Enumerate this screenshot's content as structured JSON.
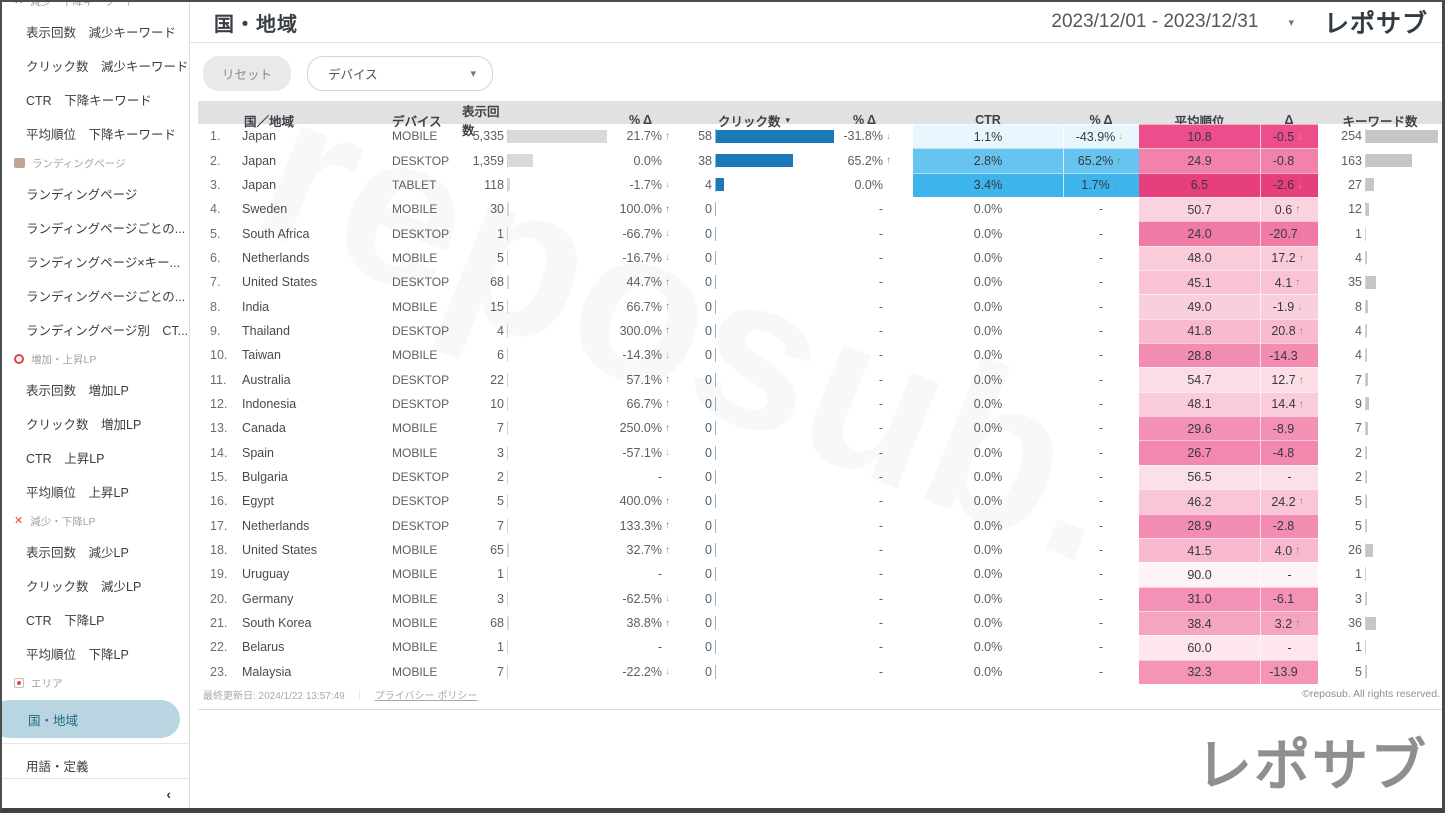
{
  "header": {
    "title": "国・地域",
    "date_range": "2023/12/01 - 2023/12/31",
    "date_caret_icon": "▾",
    "logo": "レポサブ"
  },
  "toolbar": {
    "reset_label": "リセット",
    "device_label": "デバイス",
    "device_caret_icon": "▾"
  },
  "sidebar": {
    "collapse_label": "‹",
    "entries": [
      {
        "type": "section",
        "icon": "x-icon",
        "label": "減少・下降キーワード"
      },
      {
        "type": "item",
        "label": "表示回数　減少キーワード"
      },
      {
        "type": "item",
        "label": "クリック数　減少キーワード"
      },
      {
        "type": "item",
        "label": "CTR　下降キーワード"
      },
      {
        "type": "item",
        "label": "平均順位　下降キーワード"
      },
      {
        "type": "section",
        "icon": "landing-icon",
        "label": "ランディングページ"
      },
      {
        "type": "item",
        "label": "ランディングページ"
      },
      {
        "type": "item",
        "label": "ランディングページごとの..."
      },
      {
        "type": "item",
        "label": "ランディングページ×キー..."
      },
      {
        "type": "item",
        "label": "ランディングページごとの..."
      },
      {
        "type": "item",
        "label": "ランディングページ別　CT..."
      },
      {
        "type": "section",
        "icon": "circle-icon",
        "label": "増加・上昇LP"
      },
      {
        "type": "item",
        "label": "表示回数　増加LP"
      },
      {
        "type": "item",
        "label": "クリック数　増加LP"
      },
      {
        "type": "item",
        "label": "CTR　上昇LP"
      },
      {
        "type": "item",
        "label": "平均順位　上昇LP"
      },
      {
        "type": "section",
        "icon": "x-icon",
        "label": "減少・下降LP"
      },
      {
        "type": "item",
        "label": "表示回数　減少LP"
      },
      {
        "type": "item",
        "label": "クリック数　減少LP"
      },
      {
        "type": "item",
        "label": "CTR　下降LP"
      },
      {
        "type": "item",
        "label": "平均順位　下降LP"
      },
      {
        "type": "section",
        "icon": "area-icon",
        "label": "エリア"
      },
      {
        "type": "item",
        "label": "国・地域",
        "active": true
      },
      {
        "type": "divider"
      },
      {
        "type": "item",
        "label": "用語・定義"
      }
    ]
  },
  "table": {
    "columns": [
      "国／地域",
      "デバイス",
      "表示回数",
      "% Δ",
      "クリック数",
      "% Δ",
      "CTR",
      "% Δ",
      "平均順位",
      "Δ",
      "キーワード数"
    ],
    "bar_max": {
      "impressions": 5335,
      "clicks": 58,
      "keywords": 254
    },
    "bar_colors": {
      "impressions": "#d9d9d9",
      "clicks": "#1b79ba",
      "keywords": "#c6c6c6"
    },
    "rows": [
      {
        "rank": "1.",
        "country": "Japan",
        "device": "MOBILE",
        "imp": "5,335",
        "imp_v": 5335,
        "impd": "21.7%",
        "impd_dir": "up",
        "clk": "58",
        "clk_v": 58,
        "clkd": "-31.8%",
        "clkd_dir": "down",
        "ctr": "1.1%",
        "ctr_bg": "#e9f6fd",
        "ctrd": "-43.9%",
        "ctrd_dir": "down",
        "pos": "10.8",
        "pos_bg": "#eb4e8a",
        "posd": "-0.5",
        "posd_dir": "down",
        "kw": "254",
        "kw_v": 254
      },
      {
        "rank": "2.",
        "country": "Japan",
        "device": "DESKTOP",
        "imp": "1,359",
        "imp_v": 1359,
        "impd": "0.0%",
        "impd_dir": "",
        "clk": "38",
        "clk_v": 38,
        "clkd": "65.2%",
        "clkd_dir": "up",
        "ctr": "2.8%",
        "ctr_bg": "#67c3ef",
        "ctrd": "65.2%",
        "ctrd_dir": "up",
        "pos": "24.9",
        "pos_bg": "#f182ac",
        "posd": "-0.8",
        "posd_dir": "down",
        "kw": "163",
        "kw_v": 163
      },
      {
        "rank": "3.",
        "country": "Japan",
        "device": "TABLET",
        "imp": "118",
        "imp_v": 118,
        "impd": "-1.7%",
        "impd_dir": "down",
        "clk": "4",
        "clk_v": 4,
        "clkd": "0.0%",
        "clkd_dir": "",
        "ctr": "3.4%",
        "ctr_bg": "#3db4ec",
        "ctrd": "1.7%",
        "ctrd_dir": "up",
        "pos": "6.5",
        "pos_bg": "#e73e7e",
        "posd": "-2.6",
        "posd_dir": "down",
        "kw": "27",
        "kw_v": 27
      },
      {
        "rank": "4.",
        "country": "Sweden",
        "device": "MOBILE",
        "imp": "30",
        "imp_v": 30,
        "impd": "100.0%",
        "impd_dir": "up",
        "clk": "0",
        "clk_v": 0,
        "clkd": "-",
        "clkd_dir": "",
        "ctr": "0.0%",
        "ctr_bg": "",
        "ctrd": "-",
        "ctrd_dir": "",
        "pos": "50.7",
        "pos_bg": "#fbd3e0",
        "posd": "0.6",
        "posd_dir": "up",
        "kw": "12",
        "kw_v": 12
      },
      {
        "rank": "5.",
        "country": "South Africa",
        "device": "DESKTOP",
        "imp": "1",
        "imp_v": 1,
        "impd": "-66.7%",
        "impd_dir": "down",
        "clk": "0",
        "clk_v": 0,
        "clkd": "-",
        "clkd_dir": "",
        "ctr": "0.0%",
        "ctr_bg": "",
        "ctrd": "-",
        "ctrd_dir": "",
        "pos": "24.0",
        "pos_bg": "#f07aa7",
        "posd": "-20.7",
        "posd_dir": "down",
        "kw": "1",
        "kw_v": 1
      },
      {
        "rank": "6.",
        "country": "Netherlands",
        "device": "MOBILE",
        "imp": "5",
        "imp_v": 5,
        "impd": "-16.7%",
        "impd_dir": "down",
        "clk": "0",
        "clk_v": 0,
        "clkd": "-",
        "clkd_dir": "",
        "ctr": "0.0%",
        "ctr_bg": "",
        "ctrd": "-",
        "ctrd_dir": "",
        "pos": "48.0",
        "pos_bg": "#facbda",
        "posd": "17.2",
        "posd_dir": "up",
        "kw": "4",
        "kw_v": 4
      },
      {
        "rank": "7.",
        "country": "United States",
        "device": "DESKTOP",
        "imp": "68",
        "imp_v": 68,
        "impd": "44.7%",
        "impd_dir": "up",
        "clk": "0",
        "clk_v": 0,
        "clkd": "-",
        "clkd_dir": "",
        "ctr": "0.0%",
        "ctr_bg": "",
        "ctrd": "-",
        "ctrd_dir": "",
        "pos": "45.1",
        "pos_bg": "#f9c3d5",
        "posd": "4.1",
        "posd_dir": "up",
        "kw": "35",
        "kw_v": 35
      },
      {
        "rank": "8.",
        "country": "India",
        "device": "MOBILE",
        "imp": "15",
        "imp_v": 15,
        "impd": "66.7%",
        "impd_dir": "up",
        "clk": "0",
        "clk_v": 0,
        "clkd": "-",
        "clkd_dir": "",
        "ctr": "0.0%",
        "ctr_bg": "",
        "ctrd": "-",
        "ctrd_dir": "",
        "pos": "49.0",
        "pos_bg": "#facfdd",
        "posd": "-1.9",
        "posd_dir": "down",
        "kw": "8",
        "kw_v": 8
      },
      {
        "rank": "9.",
        "country": "Thailand",
        "device": "DESKTOP",
        "imp": "4",
        "imp_v": 4,
        "impd": "300.0%",
        "impd_dir": "up",
        "clk": "0",
        "clk_v": 0,
        "clkd": "-",
        "clkd_dir": "",
        "ctr": "0.0%",
        "ctr_bg": "",
        "ctrd": "-",
        "ctrd_dir": "",
        "pos": "41.8",
        "pos_bg": "#f8bace",
        "posd": "20.8",
        "posd_dir": "up",
        "kw": "4",
        "kw_v": 4
      },
      {
        "rank": "10.",
        "country": "Taiwan",
        "device": "MOBILE",
        "imp": "6",
        "imp_v": 6,
        "impd": "-14.3%",
        "impd_dir": "down",
        "clk": "0",
        "clk_v": 0,
        "clkd": "-",
        "clkd_dir": "",
        "ctr": "0.0%",
        "ctr_bg": "",
        "ctrd": "-",
        "ctrd_dir": "",
        "pos": "28.8",
        "pos_bg": "#f28cb3",
        "posd": "-14.3",
        "posd_dir": "down",
        "kw": "4",
        "kw_v": 4
      },
      {
        "rank": "11.",
        "country": "Australia",
        "device": "DESKTOP",
        "imp": "22",
        "imp_v": 22,
        "impd": "57.1%",
        "impd_dir": "up",
        "clk": "0",
        "clk_v": 0,
        "clkd": "-",
        "clkd_dir": "",
        "ctr": "0.0%",
        "ctr_bg": "",
        "ctrd": "-",
        "ctrd_dir": "",
        "pos": "54.7",
        "pos_bg": "#fcdde6",
        "posd": "12.7",
        "posd_dir": "up",
        "kw": "7",
        "kw_v": 7
      },
      {
        "rank": "12.",
        "country": "Indonesia",
        "device": "DESKTOP",
        "imp": "10",
        "imp_v": 10,
        "impd": "66.7%",
        "impd_dir": "up",
        "clk": "0",
        "clk_v": 0,
        "clkd": "-",
        "clkd_dir": "",
        "ctr": "0.0%",
        "ctr_bg": "",
        "ctrd": "-",
        "ctrd_dir": "",
        "pos": "48.1",
        "pos_bg": "#facbda",
        "posd": "14.4",
        "posd_dir": "up",
        "kw": "9",
        "kw_v": 9
      },
      {
        "rank": "13.",
        "country": "Canada",
        "device": "MOBILE",
        "imp": "7",
        "imp_v": 7,
        "impd": "250.0%",
        "impd_dir": "up",
        "clk": "0",
        "clk_v": 0,
        "clkd": "-",
        "clkd_dir": "",
        "ctr": "0.0%",
        "ctr_bg": "",
        "ctrd": "-",
        "ctrd_dir": "",
        "pos": "29.6",
        "pos_bg": "#f390b5",
        "posd": "-8.9",
        "posd_dir": "down",
        "kw": "7",
        "kw_v": 7
      },
      {
        "rank": "14.",
        "country": "Spain",
        "device": "MOBILE",
        "imp": "3",
        "imp_v": 3,
        "impd": "-57.1%",
        "impd_dir": "down",
        "clk": "0",
        "clk_v": 0,
        "clkd": "-",
        "clkd_dir": "",
        "ctr": "0.0%",
        "ctr_bg": "",
        "ctrd": "-",
        "ctrd_dir": "",
        "pos": "26.7",
        "pos_bg": "#f287b0",
        "posd": "-4.8",
        "posd_dir": "down",
        "kw": "2",
        "kw_v": 2
      },
      {
        "rank": "15.",
        "country": "Bulgaria",
        "device": "DESKTOP",
        "imp": "2",
        "imp_v": 2,
        "impd": "-",
        "impd_dir": "",
        "clk": "0",
        "clk_v": 0,
        "clkd": "-",
        "clkd_dir": "",
        "ctr": "0.0%",
        "ctr_bg": "",
        "ctrd": "-",
        "ctrd_dir": "",
        "pos": "56.5",
        "pos_bg": "#fce0e9",
        "posd": "-",
        "posd_dir": "",
        "kw": "2",
        "kw_v": 2
      },
      {
        "rank": "16.",
        "country": "Egypt",
        "device": "DESKTOP",
        "imp": "5",
        "imp_v": 5,
        "impd": "400.0%",
        "impd_dir": "up",
        "clk": "0",
        "clk_v": 0,
        "clkd": "-",
        "clkd_dir": "",
        "ctr": "0.0%",
        "ctr_bg": "",
        "ctrd": "-",
        "ctrd_dir": "",
        "pos": "46.2",
        "pos_bg": "#f9c6d7",
        "posd": "24.2",
        "posd_dir": "up",
        "kw": "5",
        "kw_v": 5
      },
      {
        "rank": "17.",
        "country": "Netherlands",
        "device": "DESKTOP",
        "imp": "7",
        "imp_v": 7,
        "impd": "133.3%",
        "impd_dir": "up",
        "clk": "0",
        "clk_v": 0,
        "clkd": "-",
        "clkd_dir": "",
        "ctr": "0.0%",
        "ctr_bg": "",
        "ctrd": "-",
        "ctrd_dir": "",
        "pos": "28.9",
        "pos_bg": "#f28cb3",
        "posd": "-2.8",
        "posd_dir": "down",
        "kw": "5",
        "kw_v": 5
      },
      {
        "rank": "18.",
        "country": "United States",
        "device": "MOBILE",
        "imp": "65",
        "imp_v": 65,
        "impd": "32.7%",
        "impd_dir": "up",
        "clk": "0",
        "clk_v": 0,
        "clkd": "-",
        "clkd_dir": "",
        "ctr": "0.0%",
        "ctr_bg": "",
        "ctrd": "-",
        "ctrd_dir": "",
        "pos": "41.5",
        "pos_bg": "#f8b8cd",
        "posd": "4.0",
        "posd_dir": "up",
        "kw": "26",
        "kw_v": 26
      },
      {
        "rank": "19.",
        "country": "Uruguay",
        "device": "MOBILE",
        "imp": "1",
        "imp_v": 1,
        "impd": "-",
        "impd_dir": "",
        "clk": "0",
        "clk_v": 0,
        "clkd": "-",
        "clkd_dir": "",
        "ctr": "0.0%",
        "ctr_bg": "",
        "ctrd": "-",
        "ctrd_dir": "",
        "pos": "90.0",
        "pos_bg": "#fef3f7",
        "posd": "-",
        "posd_dir": "",
        "kw": "1",
        "kw_v": 1
      },
      {
        "rank": "20.",
        "country": "Germany",
        "device": "MOBILE",
        "imp": "3",
        "imp_v": 3,
        "impd": "-62.5%",
        "impd_dir": "down",
        "clk": "0",
        "clk_v": 0,
        "clkd": "-",
        "clkd_dir": "",
        "ctr": "0.0%",
        "ctr_bg": "",
        "ctrd": "-",
        "ctrd_dir": "",
        "pos": "31.0",
        "pos_bg": "#f392b6",
        "posd": "-6.1",
        "posd_dir": "down",
        "kw": "3",
        "kw_v": 3
      },
      {
        "rank": "21.",
        "country": "South Korea",
        "device": "MOBILE",
        "imp": "68",
        "imp_v": 68,
        "impd": "38.8%",
        "impd_dir": "up",
        "clk": "0",
        "clk_v": 0,
        "clkd": "-",
        "clkd_dir": "",
        "ctr": "0.0%",
        "ctr_bg": "",
        "ctrd": "-",
        "ctrd_dir": "",
        "pos": "38.4",
        "pos_bg": "#f6a5c1",
        "posd": "3.2",
        "posd_dir": "up",
        "kw": "36",
        "kw_v": 36
      },
      {
        "rank": "22.",
        "country": "Belarus",
        "device": "MOBILE",
        "imp": "1",
        "imp_v": 1,
        "impd": "-",
        "impd_dir": "",
        "clk": "0",
        "clk_v": 0,
        "clkd": "-",
        "clkd_dir": "",
        "ctr": "0.0%",
        "ctr_bg": "",
        "ctrd": "-",
        "ctrd_dir": "",
        "pos": "60.0",
        "pos_bg": "#fde6ed",
        "posd": "-",
        "posd_dir": "",
        "kw": "1",
        "kw_v": 1
      },
      {
        "rank": "23.",
        "country": "Malaysia",
        "device": "MOBILE",
        "imp": "7",
        "imp_v": 7,
        "impd": "-22.2%",
        "impd_dir": "down",
        "clk": "0",
        "clk_v": 0,
        "clkd": "-",
        "clkd_dir": "",
        "ctr": "0.0%",
        "ctr_bg": "",
        "ctrd": "-",
        "ctrd_dir": "",
        "pos": "32.3",
        "pos_bg": "#f495b8",
        "posd": "-13.9",
        "posd_dir": "down",
        "kw": "5",
        "kw_v": 5
      }
    ]
  },
  "footer": {
    "last_updated": "最終更新日: 2024/1/22 13:57:49",
    "separator": "｜",
    "privacy": "プライバシー ポリシー",
    "copyright": "©reposub. All rights reserved.",
    "big_logo": "レポサブ",
    "watermark": "reposub."
  }
}
